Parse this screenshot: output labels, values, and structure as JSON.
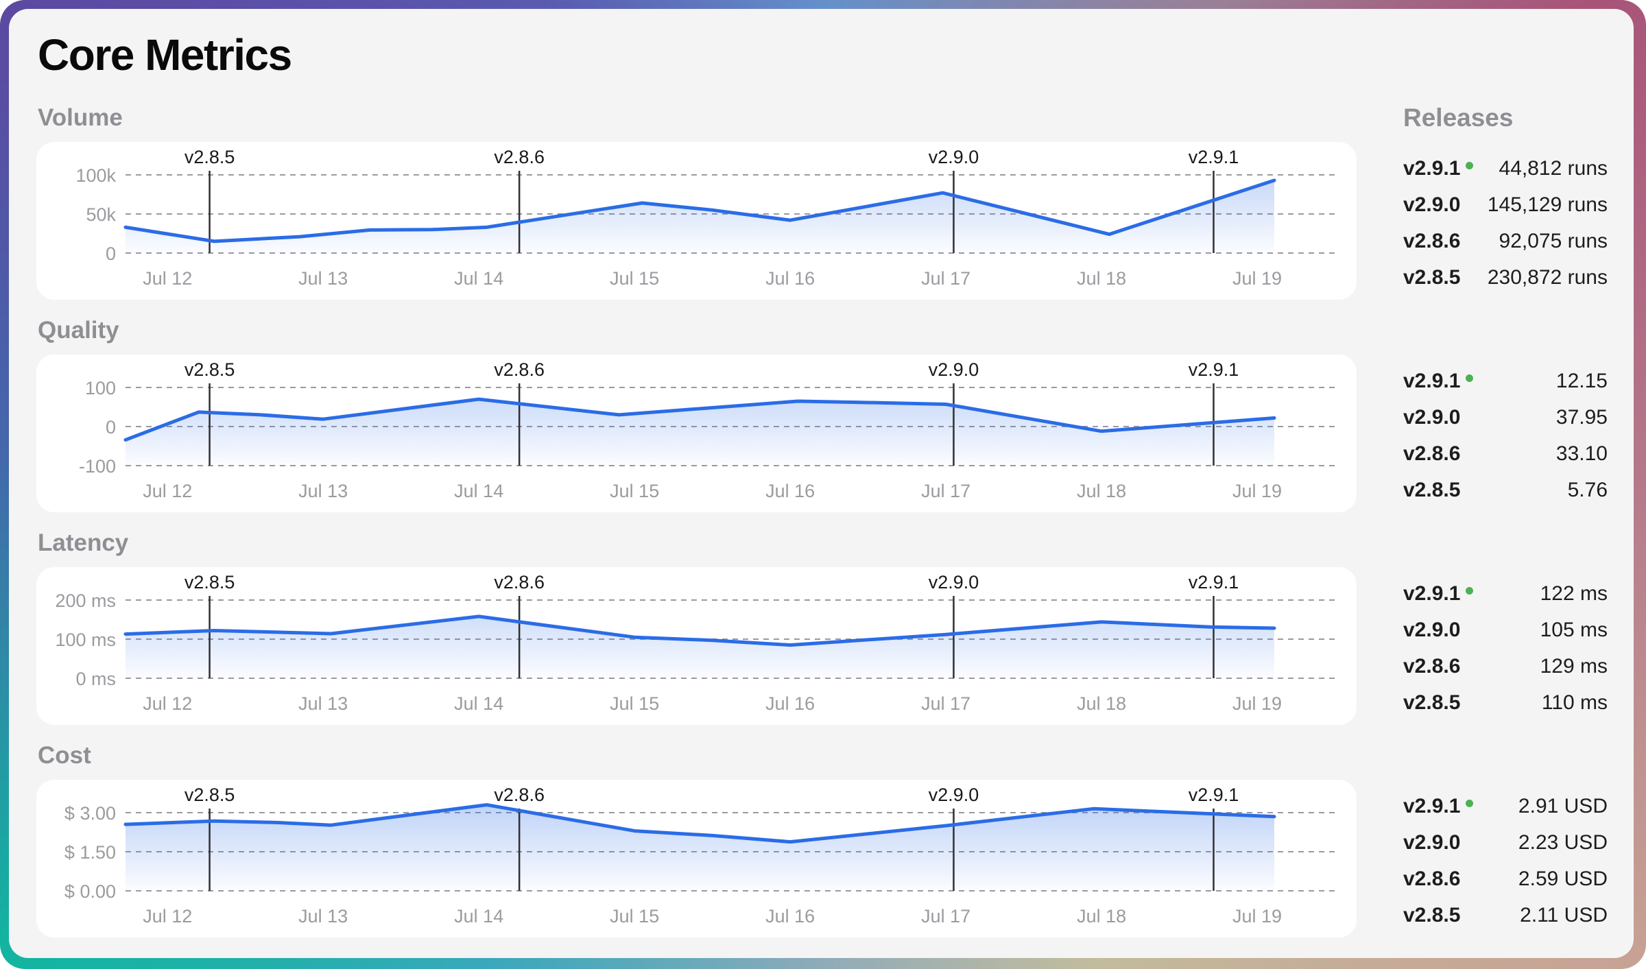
{
  "page": {
    "title": "Core Metrics"
  },
  "releases_heading": "Releases",
  "colors": {
    "line": "#2b6ce6",
    "area_top": "rgba(43,108,230,0.30)",
    "area_bottom": "rgba(43,108,230,0.02)",
    "grid": "#9a9aa0",
    "axis_text": "#9b9ba0",
    "marker_line": "#2f2f33",
    "marker_text": "#19191b",
    "latest_dot": "#4db153"
  },
  "sections": [
    {
      "label": "Volume",
      "releases": [
        {
          "version": "v2.9.1",
          "value": "44,812 runs",
          "latest": true
        },
        {
          "version": "v2.9.0",
          "value": "145,129 runs",
          "latest": false
        },
        {
          "version": "v2.8.6",
          "value": "92,075 runs",
          "latest": false
        },
        {
          "version": "v2.8.5",
          "value": "230,872 runs",
          "latest": false
        }
      ]
    },
    {
      "label": "Quality",
      "releases": [
        {
          "version": "v2.9.1",
          "value": "12.15",
          "latest": true
        },
        {
          "version": "v2.9.0",
          "value": "37.95",
          "latest": false
        },
        {
          "version": "v2.8.6",
          "value": "33.10",
          "latest": false
        },
        {
          "version": "v2.8.5",
          "value": "5.76",
          "latest": false
        }
      ]
    },
    {
      "label": "Latency",
      "releases": [
        {
          "version": "v2.9.1",
          "value": "122 ms",
          "latest": true
        },
        {
          "version": "v2.9.0",
          "value": "105 ms",
          "latest": false
        },
        {
          "version": "v2.8.6",
          "value": "129 ms",
          "latest": false
        },
        {
          "version": "v2.8.5",
          "value": "110 ms",
          "latest": false
        }
      ]
    },
    {
      "label": "Cost",
      "releases": [
        {
          "version": "v2.9.1",
          "value": "2.91 USD",
          "latest": true
        },
        {
          "version": "v2.9.0",
          "value": "2.23 USD",
          "latest": false
        },
        {
          "version": "v2.8.6",
          "value": "2.59 USD",
          "latest": false
        },
        {
          "version": "v2.8.5",
          "value": "2.11 USD",
          "latest": false
        }
      ]
    }
  ],
  "chart_data": [
    {
      "type": "area",
      "title": "Volume",
      "x_domain": [
        11.73,
        19.11
      ],
      "x_ticks": [
        {
          "day": 12,
          "label": "Jul 12"
        },
        {
          "day": 13,
          "label": "Jul 13"
        },
        {
          "day": 14,
          "label": "Jul 14"
        },
        {
          "day": 15,
          "label": "Jul 15"
        },
        {
          "day": 16,
          "label": "Jul 16"
        },
        {
          "day": 17,
          "label": "Jul 17"
        },
        {
          "day": 18,
          "label": "Jul 18"
        },
        {
          "day": 19,
          "label": "Jul 19"
        }
      ],
      "y_grid": [
        {
          "value": 0,
          "label": "0"
        },
        {
          "value": 50000,
          "label": "50k"
        },
        {
          "value": 100000,
          "label": "100k"
        }
      ],
      "releases": [
        {
          "label": "v2.8.5",
          "day": 12.27
        },
        {
          "label": "v2.8.6",
          "day": 14.26
        },
        {
          "label": "v2.9.0",
          "day": 17.05
        },
        {
          "label": "v2.9.1",
          "day": 18.72
        }
      ],
      "series": [
        [
          11.73,
          33000
        ],
        [
          12.3,
          15000
        ],
        [
          12.85,
          21000
        ],
        [
          13.3,
          29500
        ],
        [
          13.7,
          30000
        ],
        [
          14.05,
          33000
        ],
        [
          15.05,
          64000
        ],
        [
          15.5,
          55000
        ],
        [
          16.0,
          42000
        ],
        [
          16.98,
          77000
        ],
        [
          18.05,
          24000
        ],
        [
          19.11,
          93000
        ]
      ]
    },
    {
      "type": "area",
      "title": "Quality",
      "x_domain": [
        11.73,
        19.11
      ],
      "x_ticks": [
        {
          "day": 12,
          "label": "Jul 12"
        },
        {
          "day": 13,
          "label": "Jul 13"
        },
        {
          "day": 14,
          "label": "Jul 14"
        },
        {
          "day": 15,
          "label": "Jul 15"
        },
        {
          "day": 16,
          "label": "Jul 16"
        },
        {
          "day": 17,
          "label": "Jul 17"
        },
        {
          "day": 18,
          "label": "Jul 18"
        },
        {
          "day": 19,
          "label": "Jul 19"
        }
      ],
      "y_grid": [
        {
          "value": -100,
          "label": "-100"
        },
        {
          "value": 0,
          "label": "0"
        },
        {
          "value": 100,
          "label": "100"
        }
      ],
      "releases": [
        {
          "label": "v2.8.5",
          "day": 12.27
        },
        {
          "label": "v2.8.6",
          "day": 14.26
        },
        {
          "label": "v2.9.0",
          "day": 17.05
        },
        {
          "label": "v2.9.1",
          "day": 18.72
        }
      ],
      "series": [
        [
          11.73,
          -34
        ],
        [
          12.2,
          37
        ],
        [
          12.6,
          30
        ],
        [
          13.0,
          19
        ],
        [
          14.0,
          70
        ],
        [
          14.9,
          30
        ],
        [
          16.05,
          65
        ],
        [
          16.45,
          62
        ],
        [
          17.0,
          57
        ],
        [
          18.0,
          -12
        ],
        [
          19.11,
          22
        ]
      ]
    },
    {
      "type": "area",
      "title": "Latency",
      "x_domain": [
        11.73,
        19.11
      ],
      "x_ticks": [
        {
          "day": 12,
          "label": "Jul 12"
        },
        {
          "day": 13,
          "label": "Jul 13"
        },
        {
          "day": 14,
          "label": "Jul 14"
        },
        {
          "day": 15,
          "label": "Jul 15"
        },
        {
          "day": 16,
          "label": "Jul 16"
        },
        {
          "day": 17,
          "label": "Jul 17"
        },
        {
          "day": 18,
          "label": "Jul 18"
        },
        {
          "day": 19,
          "label": "Jul 19"
        }
      ],
      "y_grid": [
        {
          "value": 0,
          "label": "0 ms"
        },
        {
          "value": 100,
          "label": "100 ms"
        },
        {
          "value": 200,
          "label": "200 ms"
        }
      ],
      "releases": [
        {
          "label": "v2.8.5",
          "day": 12.27
        },
        {
          "label": "v2.8.6",
          "day": 14.26
        },
        {
          "label": "v2.9.0",
          "day": 17.05
        },
        {
          "label": "v2.9.1",
          "day": 18.72
        }
      ],
      "series": [
        [
          11.73,
          113
        ],
        [
          12.3,
          122
        ],
        [
          12.6,
          119
        ],
        [
          13.05,
          114
        ],
        [
          14.0,
          158
        ],
        [
          15.0,
          105
        ],
        [
          15.5,
          97
        ],
        [
          16.0,
          85
        ],
        [
          17.0,
          112
        ],
        [
          18.0,
          144
        ],
        [
          18.7,
          131
        ],
        [
          19.11,
          128
        ]
      ]
    },
    {
      "type": "area",
      "title": "Cost",
      "x_domain": [
        11.73,
        19.11
      ],
      "x_ticks": [
        {
          "day": 12,
          "label": "Jul 12"
        },
        {
          "day": 13,
          "label": "Jul 13"
        },
        {
          "day": 14,
          "label": "Jul 14"
        },
        {
          "day": 15,
          "label": "Jul 15"
        },
        {
          "day": 16,
          "label": "Jul 16"
        },
        {
          "day": 17,
          "label": "Jul 17"
        },
        {
          "day": 18,
          "label": "Jul 18"
        },
        {
          "day": 19,
          "label": "Jul 19"
        }
      ],
      "y_grid": [
        {
          "value": 0,
          "label": "$ 0.00"
        },
        {
          "value": 1.5,
          "label": "$ 1.50"
        },
        {
          "value": 3,
          "label": "$ 3.00"
        }
      ],
      "releases": [
        {
          "label": "v2.8.5",
          "day": 12.27
        },
        {
          "label": "v2.8.6",
          "day": 14.26
        },
        {
          "label": "v2.9.0",
          "day": 17.05
        },
        {
          "label": "v2.9.1",
          "day": 18.72
        }
      ],
      "series": [
        [
          11.73,
          2.55
        ],
        [
          12.3,
          2.68
        ],
        [
          12.7,
          2.62
        ],
        [
          13.05,
          2.52
        ],
        [
          14.05,
          3.3
        ],
        [
          15.0,
          2.3
        ],
        [
          15.5,
          2.12
        ],
        [
          16.0,
          1.88
        ],
        [
          17.0,
          2.5
        ],
        [
          17.95,
          3.15
        ],
        [
          19.11,
          2.85
        ]
      ]
    }
  ]
}
